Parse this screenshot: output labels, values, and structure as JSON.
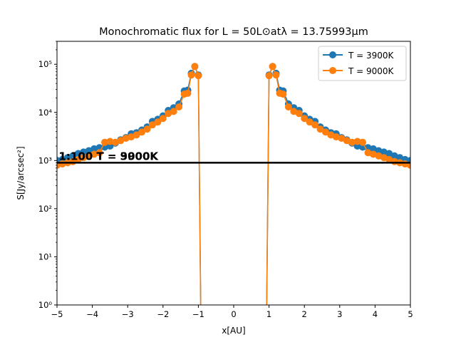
{
  "chart_data": {
    "type": "line",
    "title": "Monochromatic flux for L = 50L⊙atλ = 13.75993µm",
    "xlabel": "x[AU]",
    "ylabel": "S[Jy/arcsec²]",
    "xlim": [
      -5,
      5
    ],
    "ylim": [
      1,
      300000
    ],
    "yscale": "log",
    "grid": false,
    "legend_position": "top-right",
    "x_ticks": [
      {
        "value": -5,
        "label": "−5"
      },
      {
        "value": -4,
        "label": "−4"
      },
      {
        "value": -3,
        "label": "−3"
      },
      {
        "value": -2,
        "label": "−2"
      },
      {
        "value": -1,
        "label": "−1"
      },
      {
        "value": 0,
        "label": "0"
      },
      {
        "value": 1,
        "label": "1"
      },
      {
        "value": 2,
        "label": "2"
      },
      {
        "value": 3,
        "label": "3"
      },
      {
        "value": 4,
        "label": "4"
      },
      {
        "value": 5,
        "label": "5"
      }
    ],
    "y_ticks": [
      {
        "value": 1,
        "label": "10⁰"
      },
      {
        "value": 10,
        "label": "10¹"
      },
      {
        "value": 100,
        "label": "10²"
      },
      {
        "value": 1000,
        "label": "10³"
      },
      {
        "value": 10000,
        "label": "10⁴"
      },
      {
        "value": 100000,
        "label": "10⁵"
      }
    ],
    "reference_line": {
      "y": 900,
      "color": "#000000"
    },
    "annotations": [
      {
        "text": "1:100  T = 3900K",
        "x": -4.95,
        "y": 1000
      },
      {
        "text": "1:100  T = 9000K",
        "x": -4.95,
        "y": 1000
      }
    ],
    "series": [
      {
        "name": "T = 3900K",
        "color": "#1f77b4",
        "x": [
          -5.0,
          -4.85,
          -4.7,
          -4.55,
          -4.4,
          -4.25,
          -4.1,
          -3.95,
          -3.8,
          -3.65,
          -3.5,
          -3.35,
          -3.2,
          -3.05,
          -2.9,
          -2.75,
          -2.6,
          -2.45,
          -2.3,
          -2.15,
          -2.0,
          -1.85,
          -1.7,
          -1.55,
          -1.4,
          -1.3,
          -1.2,
          -1.1,
          -1.0,
          -0.93,
          0.93,
          1.0,
          1.1,
          1.2,
          1.3,
          1.4,
          1.55,
          1.7,
          1.85,
          2.0,
          2.15,
          2.3,
          2.45,
          2.6,
          2.75,
          2.9,
          3.05,
          3.2,
          3.35,
          3.5,
          3.65,
          3.8,
          3.95,
          4.1,
          4.25,
          4.4,
          4.55,
          4.7,
          4.85,
          5.0
        ],
        "y": [
          1000,
          1050,
          1150,
          1250,
          1400,
          1500,
          1600,
          1750,
          1850,
          1900,
          2000,
          2300,
          2700,
          3000,
          3600,
          3800,
          4300,
          5000,
          6500,
          7200,
          8500,
          11000,
          12500,
          15000,
          28000,
          29000,
          65000,
          90000,
          60000,
          0.5,
          0.5,
          60000,
          90000,
          65000,
          29000,
          28000,
          15000,
          12500,
          11000,
          8500,
          7200,
          6500,
          5000,
          4300,
          3800,
          3600,
          3000,
          2700,
          2300,
          2000,
          1900,
          1850,
          1750,
          1600,
          1500,
          1400,
          1250,
          1150,
          1050,
          1000
        ]
      },
      {
        "name": "T = 9000K",
        "color": "#ff7f0e",
        "x": [
          -5.0,
          -4.85,
          -4.7,
          -4.55,
          -4.4,
          -4.25,
          -4.1,
          -3.95,
          -3.8,
          -3.65,
          -3.5,
          -3.35,
          -3.2,
          -3.05,
          -2.9,
          -2.75,
          -2.6,
          -2.45,
          -2.3,
          -2.15,
          -2.0,
          -1.85,
          -1.7,
          -1.55,
          -1.4,
          -1.3,
          -1.2,
          -1.1,
          -1.0,
          -0.93,
          0.93,
          1.0,
          1.1,
          1.2,
          1.3,
          1.4,
          1.55,
          1.7,
          1.85,
          2.0,
          2.15,
          2.3,
          2.45,
          2.6,
          2.75,
          2.9,
          3.05,
          3.2,
          3.35,
          3.5,
          3.65,
          3.8,
          3.95,
          4.1,
          4.25,
          4.4,
          4.55,
          4.7,
          4.85,
          5.0
        ],
        "y": [
          800,
          850,
          900,
          950,
          1050,
          1150,
          1250,
          1350,
          1450,
          2400,
          2500,
          2400,
          2600,
          2900,
          3100,
          3400,
          3900,
          4500,
          5500,
          6300,
          7500,
          9500,
          10500,
          13000,
          24000,
          25000,
          60000,
          90000,
          58000,
          0.5,
          0.5,
          58000,
          90000,
          60000,
          25000,
          24000,
          13000,
          10500,
          9500,
          7500,
          6300,
          5500,
          4500,
          3900,
          3400,
          3100,
          2900,
          2600,
          2400,
          2500,
          2400,
          1450,
          1350,
          1250,
          1150,
          1050,
          950,
          900,
          850,
          800
        ]
      }
    ]
  }
}
